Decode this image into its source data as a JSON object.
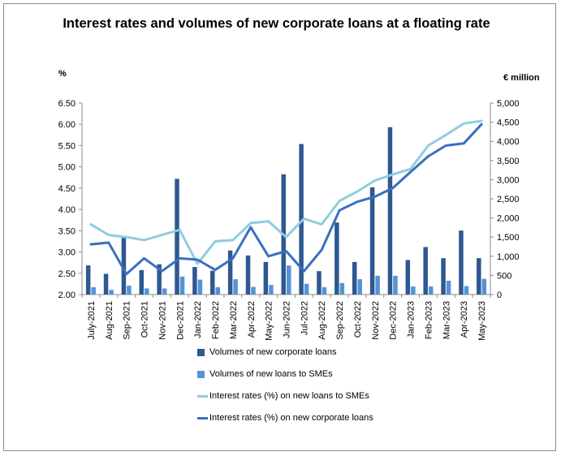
{
  "chart_data": {
    "type": "bar+line",
    "title": "Interest rates and volumes of new corporate loans at a floating rate",
    "left_axis_unit": "%",
    "right_axis_unit": "€ million",
    "categories": [
      "July-2021",
      "Aug-2021",
      "Sep-2021",
      "Oct-2021",
      "Nov-2021",
      "Dec-2021",
      "Jan-2022",
      "Feb-2022",
      "Mar-2022",
      "Apr-2022",
      "May-2022",
      "Jun-2022",
      "Jul-2022",
      "Aug-2022",
      "Sep-2022",
      "Oct-2022",
      "Nov-2022",
      "Dec-2022",
      "Jan-2023",
      "Feb-2023",
      "Mar-2023",
      "Apr-2023",
      "May-2023"
    ],
    "left_axis": {
      "min": 2.0,
      "max": 6.5,
      "ticks": [
        "2.00",
        "2.50",
        "3.00",
        "3.50",
        "4.00",
        "4.50",
        "5.00",
        "5.50",
        "6.00",
        "6.50"
      ]
    },
    "right_axis": {
      "min": 0,
      "max": 5000,
      "ticks": [
        "0",
        "500",
        "1,000",
        "1,500",
        "2,000",
        "2,500",
        "3,000",
        "3,500",
        "4,000",
        "4,500",
        "5,000"
      ]
    },
    "grid": false,
    "legend_position": "bottom",
    "series": [
      {
        "name": "Volumes of new corporate loans",
        "type": "bar",
        "axis": "right",
        "color": "#2e5890",
        "values": [
          760,
          540,
          1500,
          640,
          790,
          3020,
          720,
          620,
          1150,
          1020,
          850,
          3140,
          3930,
          610,
          1880,
          850,
          2800,
          4370,
          900,
          1240,
          950,
          1670,
          950
        ]
      },
      {
        "name": "Volumes of new loans to SMEs",
        "type": "bar",
        "axis": "right",
        "color": "#5494d6",
        "values": [
          190,
          120,
          230,
          160,
          160,
          470,
          390,
          190,
          400,
          200,
          250,
          760,
          280,
          190,
          300,
          400,
          490,
          490,
          210,
          210,
          360,
          220,
          410
        ]
      },
      {
        "name": "Interest rates (%) on new loans to SMEs",
        "type": "line",
        "axis": "left",
        "color": "#8ecde0",
        "values": [
          3.65,
          3.4,
          3.35,
          3.28,
          3.4,
          3.52,
          2.72,
          3.25,
          3.28,
          3.68,
          3.72,
          3.35,
          3.78,
          3.65,
          4.2,
          4.42,
          4.68,
          4.82,
          4.95,
          5.5,
          5.75,
          6.02,
          6.08
        ]
      },
      {
        "name": "Interest rates (%) on new corporate loans",
        "type": "line",
        "axis": "left",
        "color": "#3a6fbf",
        "values": [
          3.18,
          3.22,
          2.48,
          2.85,
          2.55,
          2.85,
          2.82,
          2.58,
          2.85,
          3.58,
          2.9,
          3.02,
          2.55,
          3.05,
          3.98,
          4.18,
          4.3,
          4.5,
          4.88,
          5.25,
          5.5,
          5.55,
          6.0
        ]
      }
    ]
  }
}
